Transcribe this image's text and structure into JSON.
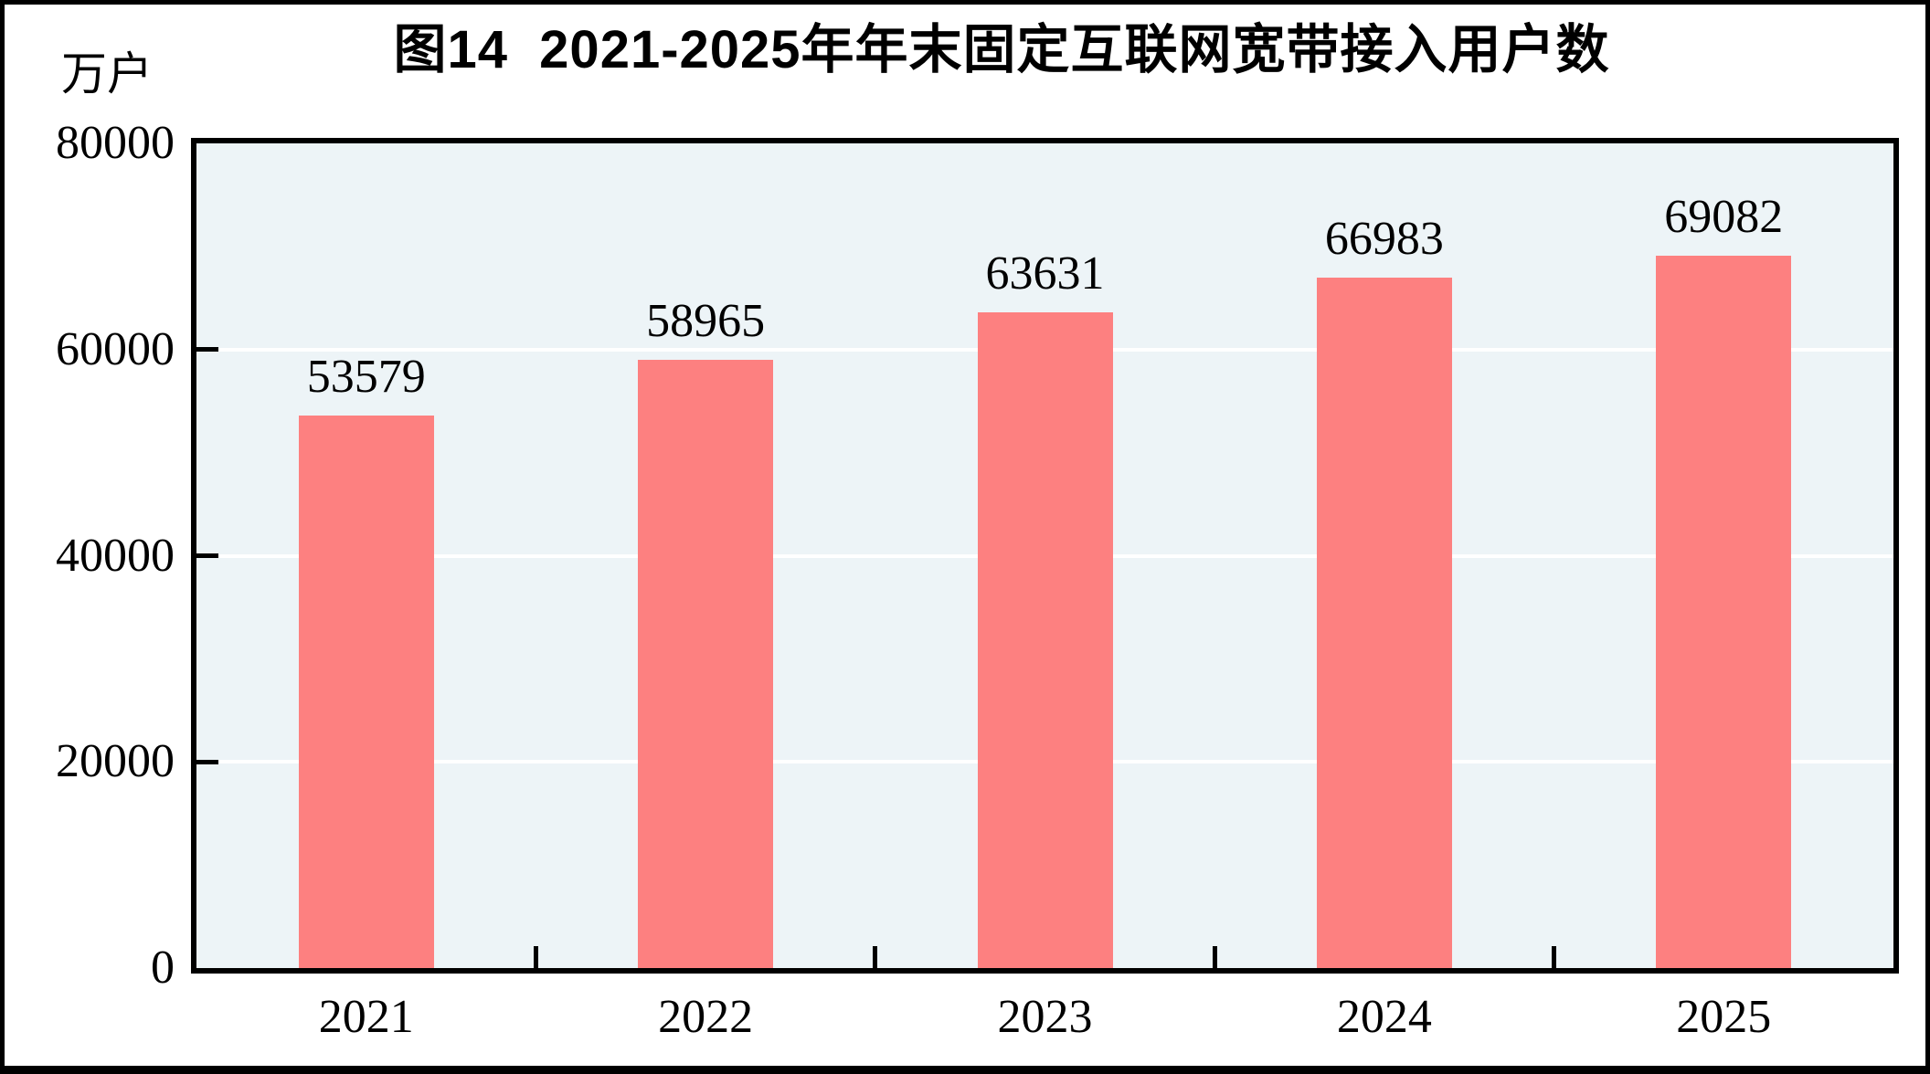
{
  "figure": {
    "title": "图14  2021-2025年年末固定互联网宽带接入用户数",
    "unit_label": "万户"
  },
  "chart_data": {
    "type": "bar",
    "title": "图14  2021-2025年年末固定互联网宽带接入用户数",
    "unit": "万户",
    "categories": [
      "2021",
      "2022",
      "2023",
      "2024",
      "2025"
    ],
    "values": [
      53579,
      58965,
      63631,
      66983,
      69082
    ],
    "xlabel": "",
    "ylabel": "万户",
    "ylim": [
      0,
      80000
    ],
    "yticks": [
      0,
      20000,
      40000,
      60000,
      80000
    ],
    "grid": "horizontal",
    "legend_position": "none",
    "bar_color": "#FD8080",
    "plot_bg_color": "#EDF4F7",
    "gridline_color": "#FFFFFF",
    "axis_color": "#000000",
    "text_color": "#000000"
  }
}
